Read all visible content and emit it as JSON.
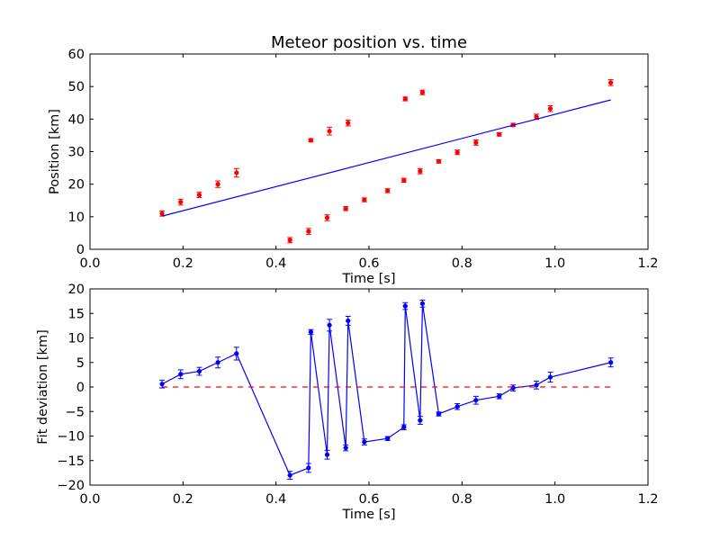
{
  "chart_data": [
    {
      "type": "scatter",
      "title": "Meteor position vs. time",
      "xlabel": "Time [s]",
      "ylabel": "Position [km]",
      "xlim": [
        0.0,
        1.2
      ],
      "ylim": [
        0,
        60
      ],
      "xticks": [
        "0.0",
        "0.2",
        "0.4",
        "0.6",
        "0.8",
        "1.0",
        "1.2"
      ],
      "yticks": [
        "0",
        "10",
        "20",
        "30",
        "40",
        "50",
        "60"
      ],
      "grid": false,
      "series": [
        {
          "kind": "errorbar-points",
          "color": "#ff0000",
          "x": [
            0.155,
            0.195,
            0.235,
            0.275,
            0.315,
            0.43,
            0.47,
            0.475,
            0.51,
            0.515,
            0.55,
            0.555,
            0.59,
            0.64,
            0.675,
            0.678,
            0.71,
            0.715,
            0.75,
            0.79,
            0.83,
            0.88,
            0.91,
            0.96,
            0.99,
            1.12
          ],
          "y": [
            11.0,
            14.5,
            16.7,
            20.0,
            23.5,
            2.8,
            5.5,
            33.5,
            9.7,
            36.3,
            12.5,
            38.8,
            15.2,
            18.0,
            21.2,
            46.2,
            24.0,
            48.2,
            27.0,
            29.8,
            32.8,
            35.3,
            38.2,
            40.7,
            43.2,
            51.2
          ],
          "yerr": [
            0.8,
            0.9,
            0.8,
            1.0,
            1.3,
            0.8,
            0.9,
            0.5,
            0.9,
            1.2,
            0.6,
            0.9,
            0.6,
            0.6,
            0.6,
            0.6,
            0.8,
            0.7,
            0.5,
            0.7,
            0.8,
            0.5,
            0.5,
            0.8,
            0.9,
            0.9
          ]
        },
        {
          "kind": "fit-line",
          "color": "#0000ff",
          "x": [
            0.155,
            1.12
          ],
          "y": [
            10.2,
            45.9
          ]
        }
      ]
    },
    {
      "type": "line",
      "title": "",
      "xlabel": "Time [s]",
      "ylabel": "Fit deviation [km]",
      "xlim": [
        0.0,
        1.2
      ],
      "ylim": [
        -20,
        20
      ],
      "xticks": [
        "0.0",
        "0.2",
        "0.4",
        "0.6",
        "0.8",
        "1.0",
        "1.2"
      ],
      "yticks": [
        "−20",
        "−15",
        "−10",
        "−5",
        "0",
        "5",
        "10",
        "15",
        "20"
      ],
      "grid": false,
      "series": [
        {
          "kind": "errorbar-line",
          "color": "#0000ff",
          "x": [
            0.155,
            0.195,
            0.235,
            0.275,
            0.315,
            0.43,
            0.47,
            0.475,
            0.51,
            0.515,
            0.55,
            0.555,
            0.59,
            0.64,
            0.675,
            0.678,
            0.71,
            0.715,
            0.75,
            0.79,
            0.83,
            0.88,
            0.91,
            0.96,
            0.99,
            1.12
          ],
          "y": [
            0.6,
            2.6,
            3.2,
            5.0,
            6.8,
            -18.0,
            -16.5,
            11.2,
            -13.8,
            12.6,
            -12.4,
            13.5,
            -11.2,
            -10.5,
            -8.2,
            16.5,
            -6.8,
            17.0,
            -5.5,
            -4.0,
            -2.7,
            -1.9,
            -0.2,
            0.4,
            2.0,
            5.0
          ],
          "yerr": [
            0.8,
            0.9,
            0.8,
            1.1,
            1.3,
            0.8,
            0.9,
            0.5,
            0.9,
            1.2,
            0.6,
            0.9,
            0.6,
            0.4,
            0.5,
            0.7,
            0.8,
            0.7,
            0.4,
            0.6,
            0.8,
            0.5,
            0.6,
            0.8,
            1.0,
            0.9
          ]
        },
        {
          "kind": "zero-line",
          "color": "#ff0000",
          "dashed": true,
          "x": [
            0.155,
            1.12
          ],
          "y": [
            0,
            0
          ]
        }
      ]
    }
  ]
}
